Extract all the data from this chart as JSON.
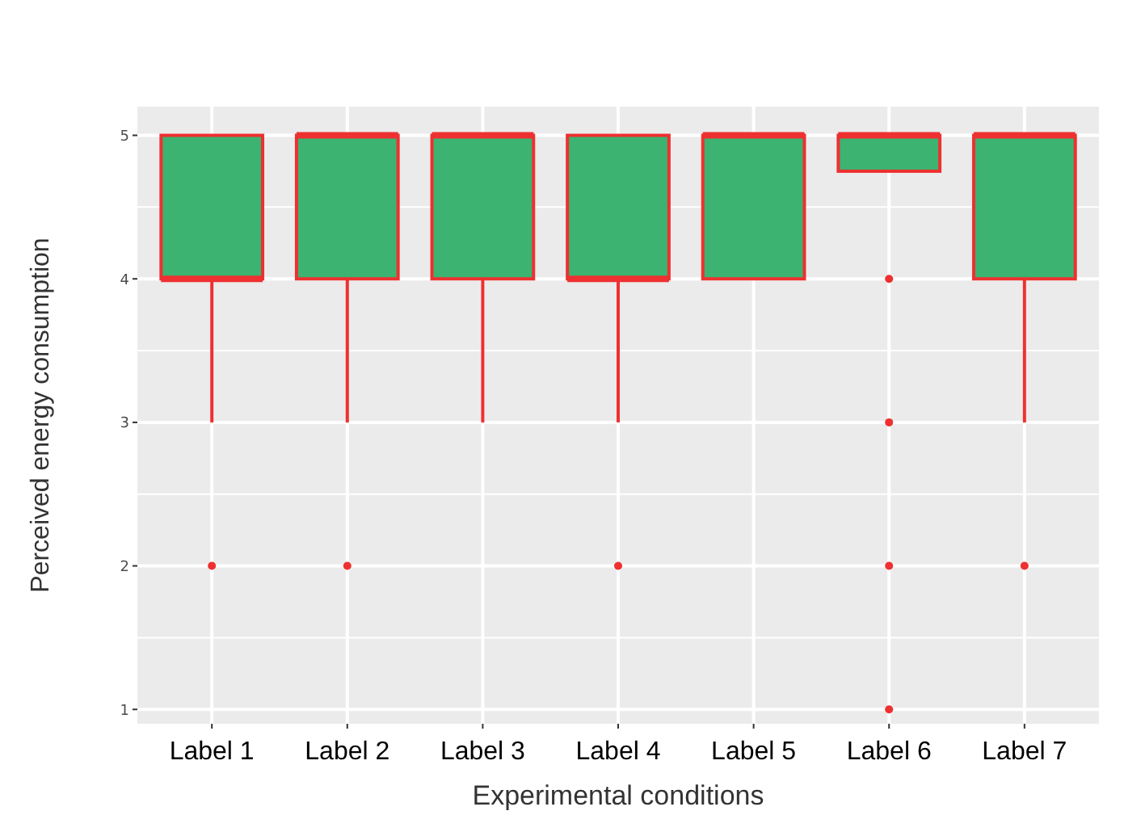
{
  "chart_data": {
    "type": "box",
    "xlabel": "Experimental conditions",
    "ylabel": "Perceived energy consumption",
    "categories": [
      "Label 1",
      "Label 2",
      "Label 3",
      "Label 4",
      "Label 5",
      "Label 6",
      "Label 7"
    ],
    "boxes": [
      {
        "low": 3,
        "q1": 4,
        "median": 4,
        "q3": 5,
        "high": 5,
        "outliers": [
          2
        ]
      },
      {
        "low": 3,
        "q1": 4,
        "median": 5,
        "q3": 5,
        "high": 5,
        "outliers": [
          2
        ]
      },
      {
        "low": 3,
        "q1": 4,
        "median": 5,
        "q3": 5,
        "high": 5
      },
      {
        "low": 3,
        "q1": 4,
        "median": 4,
        "q3": 5,
        "high": 5,
        "outliers": [
          2
        ]
      },
      {
        "low": 4,
        "q1": 4,
        "median": 5,
        "q3": 5,
        "high": 5
      },
      {
        "low": 4.75,
        "q1": 4.75,
        "median": 5,
        "q3": 5,
        "high": 5,
        "outliers": [
          4,
          3,
          2,
          1
        ]
      },
      {
        "low": 3,
        "q1": 4,
        "median": 5,
        "q3": 5,
        "high": 5,
        "outliers": [
          2
        ]
      }
    ],
    "color": "#3cb371",
    "ylim": [
      0.9,
      5.2
    ],
    "yticks": [
      1,
      2,
      3,
      4,
      5
    ],
    "grid": true
  }
}
